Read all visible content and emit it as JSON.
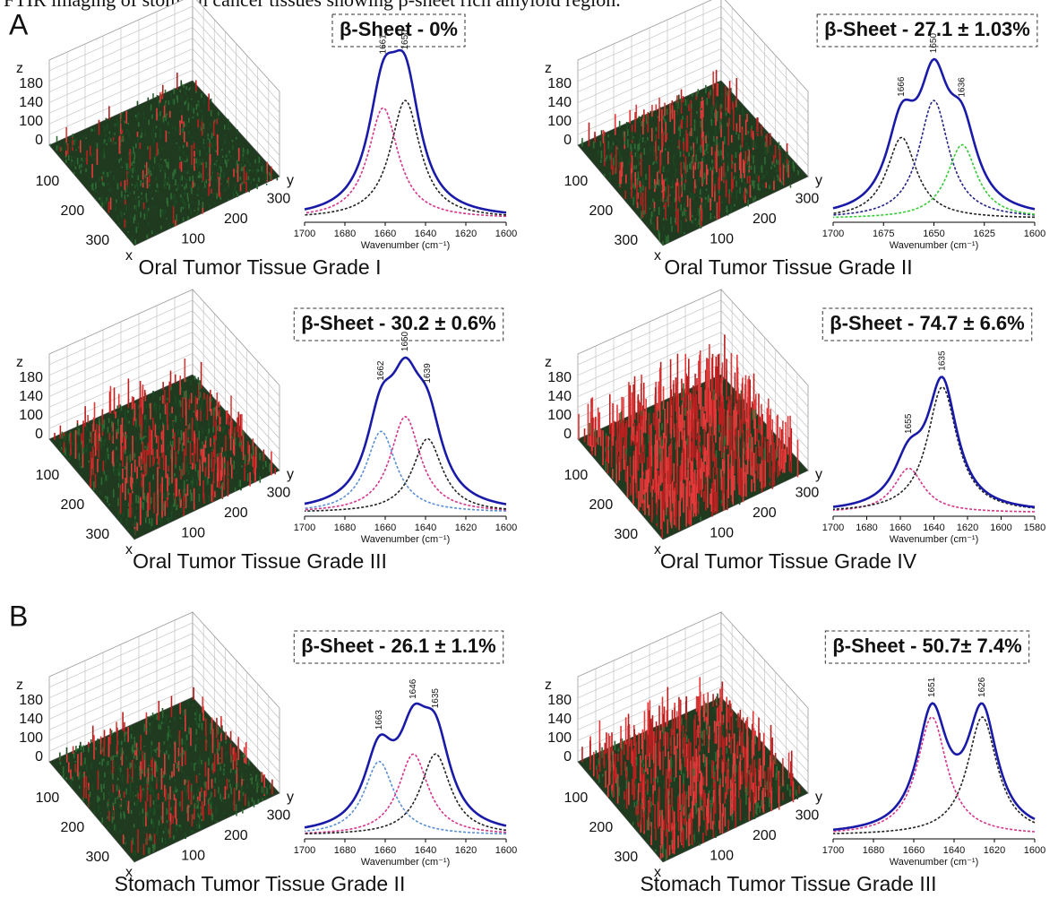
{
  "caption": "FTIR imaging of stomach cancer tissues showing β-sheet rich amyloid region.",
  "sections": [
    {
      "label": "A",
      "panels": [
        {
          "beta_sheet": "β-Sheet - 0%",
          "title": "Oral Tumor Tissue Grade I",
          "surface": {
            "z_label": "z",
            "zticks": [
              180,
              140,
              100,
              0
            ],
            "x_label": "x",
            "xticks": [
              100,
              200,
              300
            ],
            "y_label": "y",
            "yticks": [
              100,
              200,
              300
            ]
          },
          "spectrum": {
            "type": "line",
            "xlim": [
              1700,
              1600
            ],
            "xticks": [
              1700,
              1680,
              1660,
              1640,
              1620,
              1600
            ],
            "x_label": "Wavenumber (cm⁻¹)",
            "sum_color": "#1a1aa8",
            "components": [
              {
                "center": 1661,
                "height": 0.75,
                "color": "#d6338a"
              },
              {
                "center": 1650,
                "height": 0.8,
                "color": "#222222"
              }
            ]
          }
        },
        {
          "beta_sheet": "β-Sheet - 27.1 ± 1.03%",
          "title": "Oral Tumor Tissue Grade II",
          "surface": {
            "z_label": "z",
            "zticks": [
              180,
              140,
              100,
              0
            ],
            "x_label": "x",
            "xticks": [
              100,
              200,
              300
            ],
            "y_label": "y",
            "yticks": [
              100,
              200,
              300
            ]
          },
          "spectrum": {
            "type": "line",
            "xlim": [
              1700,
              1600
            ],
            "xticks": [
              1700,
              1675,
              1650,
              1625,
              1600
            ],
            "x_label": "Wavenumber (cm⁻¹)",
            "sum_color": "#1a1aa8",
            "components": [
              {
                "center": 1666,
                "height": 0.55,
                "color": "#222222"
              },
              {
                "center": 1650,
                "height": 0.8,
                "color": "#22228a"
              },
              {
                "center": 1636,
                "height": 0.5,
                "color": "#33cc33"
              }
            ]
          }
        },
        {
          "beta_sheet": "β-Sheet - 30.2 ± 0.6%",
          "title": "Oral Tumor Tissue Grade III",
          "surface": {
            "z_label": "z",
            "zticks": [
              180,
              140,
              100,
              0
            ],
            "x_label": "x",
            "xticks": [
              100,
              200,
              300
            ],
            "y_label": "y",
            "yticks": [
              100,
              200,
              300
            ]
          },
          "spectrum": {
            "type": "line",
            "xlim": [
              1700,
              1600
            ],
            "xticks": [
              1700,
              1680,
              1660,
              1640,
              1620,
              1600
            ],
            "x_label": "Wavenumber (cm⁻¹)",
            "sum_color": "#1a1aa8",
            "components": [
              {
                "center": 1662,
                "height": 0.55,
                "color": "#5b8fd6"
              },
              {
                "center": 1650,
                "height": 0.65,
                "color": "#d6338a"
              },
              {
                "center": 1639,
                "height": 0.5,
                "color": "#222222"
              }
            ]
          }
        },
        {
          "beta_sheet": "β-Sheet - 74.7 ± 6.6%",
          "title": "Oral Tumor Tissue Grade IV",
          "surface": {
            "z_label": "z",
            "zticks": [
              180,
              140,
              100,
              0
            ],
            "x_label": "x",
            "xticks": [
              100,
              200,
              300
            ],
            "y_label": "y",
            "yticks": [
              100,
              200,
              300
            ]
          },
          "spectrum": {
            "type": "line",
            "xlim": [
              1700,
              1580
            ],
            "xticks": [
              1700,
              1680,
              1660,
              1640,
              1620,
              1600,
              1580
            ],
            "x_label": "Wavenumber (cm⁻¹)",
            "sum_color": "#1a1aa8",
            "components": [
              {
                "center": 1655,
                "height": 0.3,
                "color": "#d6338a"
              },
              {
                "center": 1635,
                "height": 0.85,
                "color": "#222222"
              }
            ]
          }
        }
      ]
    },
    {
      "label": "B",
      "panels": [
        {
          "beta_sheet": "β-Sheet - 26.1 ± 1.1%",
          "title": "Stomach Tumor Tissue Grade II",
          "surface": {
            "z_label": "z",
            "zticks": [
              180,
              140,
              100,
              0
            ],
            "x_label": "x",
            "xticks": [
              100,
              200,
              300
            ],
            "y_label": "y",
            "yticks": [
              100,
              200,
              300
            ]
          },
          "spectrum": {
            "type": "line",
            "xlim": [
              1700,
              1600
            ],
            "xticks": [
              1700,
              1680,
              1660,
              1640,
              1620,
              1600
            ],
            "x_label": "Wavenumber (cm⁻¹)",
            "sum_color": "#1a1aa8",
            "components": [
              {
                "center": 1663,
                "height": 0.5,
                "color": "#5b8fd6"
              },
              {
                "center": 1646,
                "height": 0.55,
                "color": "#d6338a"
              },
              {
                "center": 1635,
                "height": 0.55,
                "color": "#222222"
              }
            ]
          }
        },
        {
          "beta_sheet": "β-Sheet - 50.7± 7.4%",
          "title": "Stomach Tumor Tissue Grade III",
          "surface": {
            "z_label": "z",
            "zticks": [
              180,
              140,
              100,
              0
            ],
            "x_label": "x",
            "xticks": [
              100,
              200,
              300
            ],
            "y_label": "y",
            "yticks": [
              100,
              200,
              300
            ]
          },
          "spectrum": {
            "type": "line",
            "xlim": [
              1700,
              1600
            ],
            "xticks": [
              1700,
              1680,
              1660,
              1640,
              1620,
              1600
            ],
            "x_label": "Wavenumber (cm⁻¹)",
            "sum_color": "#1a1aa8",
            "components": [
              {
                "center": 1651,
                "height": 0.8,
                "color": "#d6338a"
              },
              {
                "center": 1626,
                "height": 0.8,
                "color": "#222222"
              }
            ]
          }
        }
      ]
    }
  ]
}
